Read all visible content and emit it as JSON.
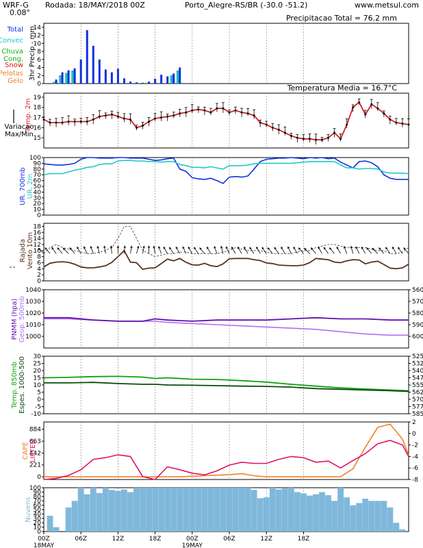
{
  "header": {
    "model": "WRF-G",
    "resolution": "0.08°",
    "run": "Rodada: 18/MAY/2018 00Z",
    "station": "Porto_Alegre-RS/BR (-30.0 -51.2)",
    "site": "www.metsul.com"
  },
  "colors": {
    "total": "#1030e0",
    "convec": "#10c8c8",
    "chuva_cong": "#10b010",
    "snow": "#e01010",
    "pelotas_gelo": "#f08020",
    "temp": "#d02020",
    "ur700": "#1030e0",
    "ur2m": "#20c8c8",
    "vento": "#5a2e1e",
    "rajada": "#5a2e1e",
    "pnmm": "#6010b0",
    "geop": "#b070f0",
    "temp850": "#10a010",
    "espes": "#0a4a0a",
    "cape": "#f08020",
    "lifted": "#e0106a",
    "nuvens": "#7fb8db"
  },
  "chart_data": [
    {
      "type": "bar",
      "id": "precip",
      "title": "Precipitacao Total = 76.2  mm",
      "ylabel": "3hr Precip - mm",
      "legend": [
        "Total",
        "Convec",
        "Chuva Cong.",
        "Snow",
        "Pelotas Gelo"
      ],
      "ylim": [
        0,
        15
      ],
      "yticks": [
        0,
        2,
        4,
        6,
        8,
        10,
        12,
        14
      ],
      "x": [
        6,
        9,
        12,
        15,
        18,
        21,
        24,
        27,
        30,
        33,
        36,
        39,
        42,
        45,
        48,
        51,
        54,
        57,
        60,
        63,
        66
      ],
      "series": [
        {
          "name": "Total",
          "values": [
            1.0,
            2.8,
            3.3,
            3.8,
            6.0,
            13.3,
            9.4,
            6.0,
            3.5,
            2.8,
            3.7,
            1.3,
            0.5,
            0.3,
            0.2,
            0.5,
            1.2,
            2.2,
            1.8,
            2.5,
            4.0
          ]
        },
        {
          "name": "Convec",
          "values": [
            0.4,
            2.0,
            2.6,
            3.2,
            0.0,
            0.0,
            0.0,
            0.0,
            0.0,
            0.0,
            0.0,
            0.0,
            0.0,
            0.0,
            0.0,
            0.0,
            0.0,
            0.0,
            0.0,
            2.0,
            3.2
          ]
        }
      ]
    },
    {
      "type": "line",
      "id": "temp",
      "title": "Temperatura Media = 16.7°C",
      "ylabel": "Temp. 2m",
      "y2label": "Variacao Max/Min",
      "ylim": [
        14,
        19.4
      ],
      "yticks": [
        15,
        16,
        17,
        18,
        19
      ],
      "x": [
        0,
        3,
        6,
        9,
        12,
        15,
        18,
        21,
        24,
        27,
        30,
        33,
        36,
        39,
        42,
        45,
        48,
        51,
        54,
        57,
        60,
        63,
        66,
        69,
        72,
        75,
        78,
        81,
        84,
        87,
        90,
        93,
        96,
        99,
        102,
        105,
        108,
        111,
        114,
        117,
        120,
        123,
        126,
        129,
        132,
        135,
        138,
        141,
        144,
        147,
        150,
        153,
        156,
        159,
        162,
        165,
        168,
        171,
        174,
        177
      ],
      "series": [
        {
          "name": "Temp. 2m",
          "values": [
            16.8,
            16.5,
            16.5,
            16.5,
            16.6,
            16.6,
            16.6,
            16.6,
            16.8,
            17.1,
            17.2,
            17.3,
            17.1,
            16.9,
            16.8,
            16.0,
            16.2,
            16.6,
            16.9,
            17.0,
            17.1,
            17.2,
            17.4,
            17.5,
            17.7,
            17.8,
            17.7,
            17.5,
            17.9,
            17.9,
            17.5,
            17.7,
            17.5,
            17.4,
            17.2,
            16.5,
            16.3,
            16.0,
            15.8,
            15.5,
            15.2,
            15.0,
            14.9,
            14.9,
            14.8,
            14.8,
            15.0,
            15.5,
            14.9,
            16.3,
            18.0,
            18.5,
            17.3,
            18.3,
            17.9,
            17.4,
            16.8,
            16.5,
            16.4,
            16.3
          ]
        }
      ]
    },
    {
      "type": "line",
      "id": "humidity",
      "ylabel": "UR. 700mb",
      "y2label": "UR. 2m",
      "ylim": [
        0,
        100
      ],
      "yticks": [
        0,
        10,
        20,
        30,
        40,
        50,
        60,
        70,
        80,
        90,
        100
      ],
      "x": [
        0,
        3,
        6,
        9,
        12,
        15,
        18,
        21,
        24,
        27,
        30,
        33,
        36,
        39,
        42,
        45,
        48,
        51,
        54,
        57,
        60,
        63,
        66,
        69,
        72,
        75,
        78,
        81,
        84,
        87,
        90,
        93,
        96,
        99,
        102,
        105,
        108,
        111,
        114,
        117,
        120,
        123,
        126,
        129,
        132,
        135,
        138,
        141,
        144,
        147,
        150,
        153,
        156,
        159,
        162,
        165,
        168,
        171,
        174,
        177
      ],
      "series": [
        {
          "name": "UR. 700mb",
          "values": [
            89,
            88,
            87,
            87,
            88,
            90,
            97,
            100,
            100,
            99,
            99,
            99,
            100,
            100,
            99,
            99,
            99,
            97,
            95,
            96,
            98,
            99,
            80,
            76,
            65,
            63,
            62,
            64,
            60,
            55,
            66,
            67,
            66,
            68,
            80,
            93,
            97,
            98,
            99,
            99,
            100,
            99,
            98,
            100,
            99,
            100,
            98,
            99,
            92,
            87,
            82,
            93,
            94,
            91,
            84,
            70,
            64,
            62,
            62,
            62
          ]
        },
        {
          "name": "UR. 2m",
          "values": [
            70,
            72,
            72,
            72,
            75,
            78,
            80,
            83,
            84,
            88,
            89,
            89,
            94,
            95,
            95,
            94,
            94,
            93,
            93,
            92,
            93,
            93,
            88,
            86,
            83,
            83,
            82,
            84,
            82,
            80,
            86,
            86,
            86,
            87,
            89,
            90,
            90,
            90,
            90,
            90,
            90,
            91,
            92,
            93,
            93,
            93,
            93,
            93,
            87,
            82,
            82,
            80,
            81,
            81,
            80,
            75,
            73,
            73,
            73,
            72
          ]
        }
      ]
    },
    {
      "type": "line",
      "id": "wind",
      "ylabel": "Vento 10m",
      "y2label": "Rajada",
      "ylim": [
        0,
        19
      ],
      "yticks": [
        0,
        2,
        4,
        6,
        8,
        10,
        12,
        14,
        16,
        18
      ],
      "x": [
        0,
        3,
        6,
        9,
        12,
        15,
        18,
        21,
        24,
        27,
        30,
        33,
        36,
        39,
        42,
        45,
        48,
        51,
        54,
        57,
        60,
        63,
        66,
        69,
        72,
        75,
        78,
        81,
        84,
        87,
        90,
        93,
        96,
        99,
        102,
        105,
        108,
        111,
        114,
        117,
        120,
        123,
        126,
        129,
        132,
        135,
        138,
        141,
        144,
        147,
        150,
        153,
        156,
        159,
        162,
        165,
        168,
        171,
        174,
        177
      ],
      "series": [
        {
          "name": "Vento 10m",
          "values": [
            4.6,
            5.8,
            6.2,
            6.3,
            6.1,
            5.5,
            4.6,
            4.3,
            4.3,
            4.6,
            5.0,
            6.1,
            8.0,
            10.0,
            6.2,
            6.0,
            3.8,
            4.2,
            4.3,
            5.7,
            7.2,
            6.6,
            7.4,
            6.1,
            5.3,
            5.2,
            5.8,
            5.0,
            4.7,
            5.6,
            7.3,
            7.4,
            7.4,
            7.4,
            7.0,
            6.7,
            5.9,
            5.7,
            5.2,
            5.1,
            5.0,
            5.0,
            5.2,
            6.0,
            7.4,
            7.2,
            7.0,
            6.2,
            6.0,
            6.6,
            7.0,
            6.9,
            5.6,
            6.2,
            6.5,
            5.4,
            4.2,
            4.0,
            4.3,
            5.5
          ]
        },
        {
          "name": "Rajada",
          "values": [
            9.0,
            11.0,
            12.0,
            11.0,
            10.5,
            10.0,
            9.5,
            9.0,
            9.0,
            9.5,
            10.0,
            11.0,
            14.0,
            18.0,
            18.0,
            14.0,
            10.0,
            9.0,
            8.0,
            8.5,
            9.0,
            9.0,
            9.5,
            9.5,
            9.0,
            9.0,
            9.0,
            9.0,
            9.0,
            9.5,
            10.0,
            11.0,
            10.5,
            10.0,
            10.0,
            10.0,
            9.5,
            9.0,
            9.0,
            9.0,
            9.0,
            9.5,
            10.0,
            10.0,
            11.0,
            11.5,
            12.0,
            12.0,
            11.5,
            11.0,
            11.0,
            11.0,
            11.0,
            10.5,
            10.0,
            10.0,
            9.0,
            9.0,
            9.5,
            11.0
          ]
        }
      ],
      "wind_dir_deg": [
        315,
        320,
        325,
        320,
        315,
        320,
        330,
        335,
        340,
        345,
        350,
        355,
        0,
        5,
        10,
        15,
        10,
        0,
        350,
        340,
        330,
        325,
        330,
        335,
        330,
        325,
        320,
        330,
        340,
        345,
        335,
        330,
        330,
        330,
        325,
        330,
        325,
        320,
        325,
        330,
        335,
        330,
        320,
        315,
        320,
        330,
        325,
        320,
        330,
        340,
        345,
        335,
        330,
        320,
        315,
        320,
        325,
        330,
        325,
        320
      ]
    },
    {
      "type": "line",
      "id": "pressure",
      "ylabel": "PNMM (hpa)",
      "y2label": "Geop. 500mb",
      "ylim": [
        990,
        1040
      ],
      "yticks": [
        1000,
        1010,
        1020,
        1030,
        1040
      ],
      "y2ticks": [
        560,
        570,
        580,
        590,
        600
      ],
      "x": [
        0,
        12,
        24,
        36,
        48,
        54,
        60,
        72,
        84,
        96,
        108,
        120,
        132,
        144,
        156,
        168,
        177
      ],
      "series": [
        {
          "name": "PNMM (hpa)",
          "values": [
            1016,
            1016,
            1014,
            1013,
            1013,
            1015,
            1014,
            1013,
            1014,
            1014,
            1014,
            1015,
            1016,
            1015,
            1015,
            1014,
            1014
          ]
        },
        {
          "name": "Geop. 500mb",
          "values": [
            1015,
            1015,
            1014,
            1013,
            1013,
            1013,
            1012,
            1011,
            1010,
            1009,
            1008,
            1007,
            1006,
            1004,
            1002,
            1001,
            1001
          ]
        }
      ]
    },
    {
      "type": "line",
      "id": "thermal",
      "ylabel": "Temp. 850mb",
      "y2label": "Espes. 1000-500",
      "ylim": [
        -10,
        30
      ],
      "yticks": [
        -10,
        -5,
        0,
        5,
        10,
        15,
        20,
        25,
        30
      ],
      "y2ticks": [
        525,
        532,
        540,
        547,
        555,
        562,
        570,
        577,
        585
      ],
      "x": [
        0,
        12,
        24,
        36,
        48,
        54,
        60,
        72,
        84,
        96,
        108,
        120,
        132,
        144,
        156,
        168,
        177
      ],
      "series": [
        {
          "name": "Temp. 850mb",
          "values": [
            15.0,
            15.3,
            15.8,
            16.0,
            15.5,
            14.5,
            15.0,
            14.0,
            13.8,
            13.0,
            12.0,
            10.5,
            9.2,
            8.0,
            7.2,
            6.5,
            6.0
          ]
        },
        {
          "name": "Espes. 1000-500",
          "values": [
            11.5,
            11.5,
            11.8,
            11.0,
            10.5,
            10.5,
            10.0,
            9.8,
            9.5,
            9.2,
            9.0,
            8.5,
            7.5,
            7.0,
            6.5,
            6.0,
            5.5
          ]
        }
      ]
    },
    {
      "type": "line",
      "id": "cape",
      "ylabel": "CAPE",
      "y2label": "LIFTED",
      "ylim": [
        -50,
        1020
      ],
      "yticks": [
        0,
        221,
        442,
        663,
        884
      ],
      "y2ticks": [
        2,
        0,
        -2,
        -4,
        -6,
        -8
      ],
      "x": [
        0,
        6,
        12,
        18,
        24,
        30,
        36,
        42,
        48,
        54,
        60,
        66,
        72,
        78,
        84,
        90,
        96,
        102,
        108,
        114,
        120,
        126,
        132,
        138,
        144,
        150,
        156,
        162,
        168,
        174,
        177
      ],
      "series": [
        {
          "name": "CAPE",
          "values": [
            0,
            0,
            0,
            0,
            0,
            0,
            0,
            0,
            0,
            0,
            0,
            0,
            10,
            20,
            30,
            40,
            60,
            20,
            0,
            0,
            0,
            0,
            0,
            0,
            0,
            150,
            550,
            920,
            980,
            700,
            400
          ]
        },
        {
          "name": "LIFTED",
          "values": [
            2.0,
            1.8,
            1.3,
            0.3,
            -1.5,
            -1.8,
            -2.3,
            -2.0,
            1.5,
            2.0,
            -0.2,
            0.3,
            0.9,
            1.2,
            0.5,
            -0.5,
            -1.0,
            -0.8,
            -0.8,
            -1.5,
            -2.0,
            -1.8,
            -1.0,
            -1.2,
            0.0,
            -1.3,
            -2.5,
            -4.2,
            -4.8,
            -4.0,
            -2.0
          ]
        }
      ]
    },
    {
      "type": "bar",
      "id": "clouds",
      "ylabel": "Nuvens",
      "ylim": [
        0,
        100
      ],
      "yticks": [
        0,
        10,
        20,
        30,
        40,
        50,
        60,
        70,
        80,
        90,
        100
      ],
      "x": [
        0,
        3,
        6,
        9,
        12,
        15,
        18,
        21,
        24,
        27,
        30,
        33,
        36,
        39,
        42,
        45,
        48,
        51,
        54,
        57,
        60,
        63,
        66,
        69,
        72,
        75,
        78,
        81,
        84,
        87,
        90,
        93,
        96,
        99,
        102,
        105,
        108,
        111,
        114,
        117,
        120,
        123,
        126,
        129,
        132,
        135,
        138,
        141,
        144,
        147,
        150,
        153,
        156,
        159,
        162,
        165,
        168,
        171,
        174,
        177
      ],
      "series": [
        {
          "name": "Nuvens",
          "values": [
            0,
            36,
            10,
            0,
            55,
            70,
            100,
            85,
            100,
            88,
            100,
            95,
            93,
            96,
            90,
            100,
            100,
            100,
            100,
            100,
            100,
            100,
            100,
            100,
            100,
            100,
            100,
            100,
            100,
            100,
            100,
            100,
            100,
            100,
            95,
            76,
            78,
            100,
            96,
            98,
            100,
            90,
            87,
            82,
            85,
            90,
            83,
            70,
            100,
            78,
            60,
            65,
            75,
            70,
            70,
            70,
            55,
            20,
            5,
            0
          ]
        }
      ]
    }
  ],
  "xaxis": {
    "ticks": [
      {
        "h": 0,
        "label": "00Z"
      },
      {
        "h": 18,
        "label": "06Z"
      },
      {
        "h": 36,
        "label": "12Z"
      },
      {
        "h": 54,
        "label": "18Z"
      },
      {
        "h": 72,
        "label": "00Z"
      },
      {
        "h": 90,
        "label": "06Z"
      },
      {
        "h": 108,
        "label": "12Z"
      },
      {
        "h": 126,
        "label": "18Z"
      }
    ],
    "days": [
      {
        "h": 0,
        "label": "18MAY"
      },
      {
        "h": 72,
        "label": "19MAY"
      }
    ]
  }
}
